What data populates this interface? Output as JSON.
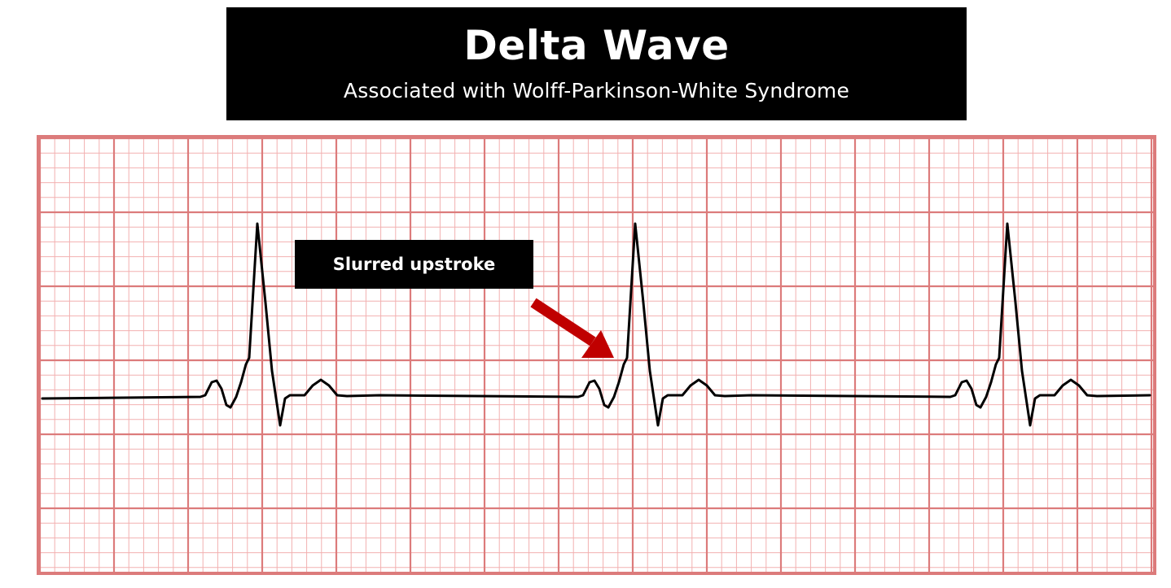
{
  "header": {
    "title": "Delta Wave",
    "subtitle": "Associated with Wolff-Parkinson-White Syndrome"
  },
  "annotation": {
    "label": "Slurred upstroke"
  },
  "colors": {
    "grid_minor": "#f2b0b0",
    "grid_major": "#dc7b7b",
    "trace": "#000000",
    "arrow": "#c00000",
    "label_bg": "#000000",
    "label_text": "#ffffff"
  },
  "icons": {
    "arrow": "arrow-down-right-icon"
  }
}
